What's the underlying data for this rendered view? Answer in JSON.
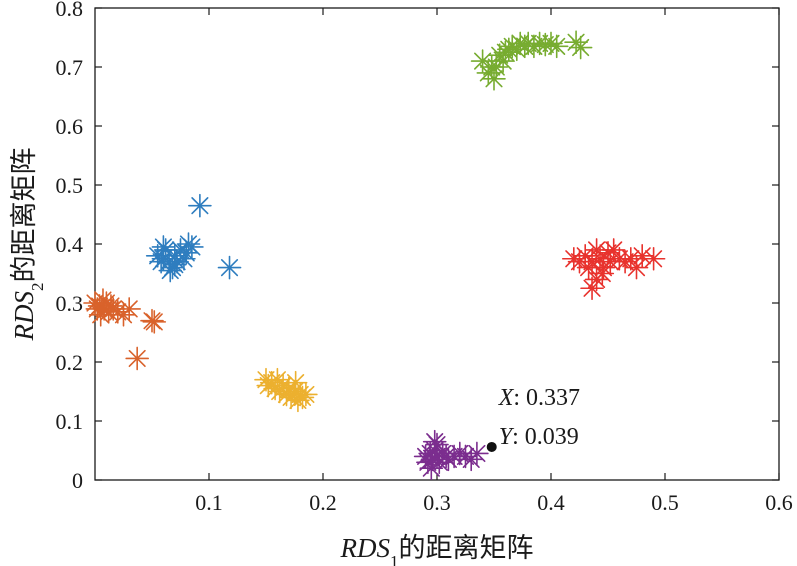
{
  "chart_data": {
    "type": "scatter",
    "marker": "asterisk",
    "xlim": [
      0,
      0.6
    ],
    "ylim": [
      0,
      0.8
    ],
    "xticks": [
      0.1,
      0.2,
      0.3,
      0.4,
      0.5,
      0.6
    ],
    "xtick_labels": [
      "0.1",
      "0.2",
      "0.3",
      "0.4",
      "0.5",
      "0.6"
    ],
    "yticks": [
      0,
      0.1,
      0.2,
      0.3,
      0.4,
      0.5,
      0.6,
      0.7,
      0.8
    ],
    "ytick_labels": [
      "0",
      "0.1",
      "0.2",
      "0.3",
      "0.4",
      "0.5",
      "0.6",
      "0.7",
      "0.8"
    ],
    "grid": false,
    "xlabel": {
      "var": "RDS",
      "sub": "1",
      "suffix": "的距离矩阵"
    },
    "ylabel": {
      "var": "RDS",
      "sub": "2",
      "suffix": "的距离矩阵"
    },
    "series": [
      {
        "color": "#2e7dbf",
        "points": [
          [
            0.055,
            0.38
          ],
          [
            0.058,
            0.37
          ],
          [
            0.06,
            0.375
          ],
          [
            0.062,
            0.39
          ],
          [
            0.065,
            0.37
          ],
          [
            0.068,
            0.36
          ],
          [
            0.07,
            0.38
          ],
          [
            0.072,
            0.37
          ],
          [
            0.075,
            0.39
          ],
          [
            0.078,
            0.375
          ],
          [
            0.08,
            0.385
          ],
          [
            0.082,
            0.4
          ],
          [
            0.085,
            0.395
          ],
          [
            0.06,
            0.395
          ],
          [
            0.066,
            0.355
          ],
          [
            0.07,
            0.365
          ],
          [
            0.092,
            0.465
          ],
          [
            0.118,
            0.36
          ]
        ]
      },
      {
        "color": "#d9622b",
        "points": [
          [
            0.0,
            0.3
          ],
          [
            0.002,
            0.29
          ],
          [
            0.004,
            0.295
          ],
          [
            0.005,
            0.28
          ],
          [
            0.007,
            0.305
          ],
          [
            0.008,
            0.29
          ],
          [
            0.01,
            0.3
          ],
          [
            0.012,
            0.285
          ],
          [
            0.014,
            0.295
          ],
          [
            0.016,
            0.29
          ],
          [
            0.02,
            0.285
          ],
          [
            0.025,
            0.28
          ],
          [
            0.03,
            0.29
          ],
          [
            0.05,
            0.27
          ],
          [
            0.052,
            0.268
          ],
          [
            0.037,
            0.206
          ]
        ]
      },
      {
        "color": "#ecb02f",
        "points": [
          [
            0.15,
            0.17
          ],
          [
            0.152,
            0.16
          ],
          [
            0.155,
            0.165
          ],
          [
            0.158,
            0.155
          ],
          [
            0.16,
            0.17
          ],
          [
            0.162,
            0.15
          ],
          [
            0.165,
            0.16
          ],
          [
            0.168,
            0.145
          ],
          [
            0.17,
            0.155
          ],
          [
            0.172,
            0.14
          ],
          [
            0.175,
            0.15
          ],
          [
            0.178,
            0.135
          ],
          [
            0.18,
            0.145
          ],
          [
            0.182,
            0.14
          ],
          [
            0.185,
            0.145
          ],
          [
            0.176,
            0.165
          ]
        ]
      },
      {
        "color": "#7b2d8e",
        "points": [
          [
            0.29,
            0.04
          ],
          [
            0.292,
            0.03
          ],
          [
            0.294,
            0.045
          ],
          [
            0.296,
            0.035
          ],
          [
            0.298,
            0.05
          ],
          [
            0.3,
            0.04
          ],
          [
            0.302,
            0.03
          ],
          [
            0.305,
            0.045
          ],
          [
            0.308,
            0.04
          ],
          [
            0.31,
            0.035
          ],
          [
            0.315,
            0.04
          ],
          [
            0.32,
            0.045
          ],
          [
            0.325,
            0.04
          ],
          [
            0.33,
            0.035
          ],
          [
            0.335,
            0.045
          ],
          [
            0.295,
            0.02
          ],
          [
            0.298,
            0.065
          ],
          [
            0.3,
            0.06
          ]
        ]
      },
      {
        "color": "#77ac30",
        "points": [
          [
            0.34,
            0.71
          ],
          [
            0.345,
            0.69
          ],
          [
            0.348,
            0.7
          ],
          [
            0.35,
            0.68
          ],
          [
            0.352,
            0.7
          ],
          [
            0.355,
            0.72
          ],
          [
            0.358,
            0.71
          ],
          [
            0.36,
            0.725
          ],
          [
            0.363,
            0.73
          ],
          [
            0.366,
            0.735
          ],
          [
            0.37,
            0.73
          ],
          [
            0.373,
            0.74
          ],
          [
            0.377,
            0.735
          ],
          [
            0.38,
            0.74
          ],
          [
            0.385,
            0.735
          ],
          [
            0.39,
            0.74
          ],
          [
            0.395,
            0.738
          ],
          [
            0.4,
            0.74
          ],
          [
            0.405,
            0.735
          ],
          [
            0.422,
            0.742
          ],
          [
            0.426,
            0.733
          ]
        ]
      },
      {
        "color": "#e8322d",
        "points": [
          [
            0.42,
            0.375
          ],
          [
            0.425,
            0.37
          ],
          [
            0.43,
            0.38
          ],
          [
            0.433,
            0.36
          ],
          [
            0.436,
            0.37
          ],
          [
            0.44,
            0.39
          ],
          [
            0.443,
            0.375
          ],
          [
            0.446,
            0.36
          ],
          [
            0.45,
            0.385
          ],
          [
            0.452,
            0.37
          ],
          [
            0.455,
            0.39
          ],
          [
            0.46,
            0.375
          ],
          [
            0.465,
            0.37
          ],
          [
            0.47,
            0.375
          ],
          [
            0.475,
            0.36
          ],
          [
            0.48,
            0.38
          ],
          [
            0.49,
            0.375
          ],
          [
            0.436,
            0.325
          ],
          [
            0.44,
            0.34
          ],
          [
            0.445,
            0.35
          ]
        ]
      }
    ],
    "annotation": {
      "point": [
        0.348,
        0.056
      ],
      "x_label": "X",
      "x_value": ": 0.337",
      "y_label": "Y",
      "y_value": ": 0.039"
    }
  }
}
